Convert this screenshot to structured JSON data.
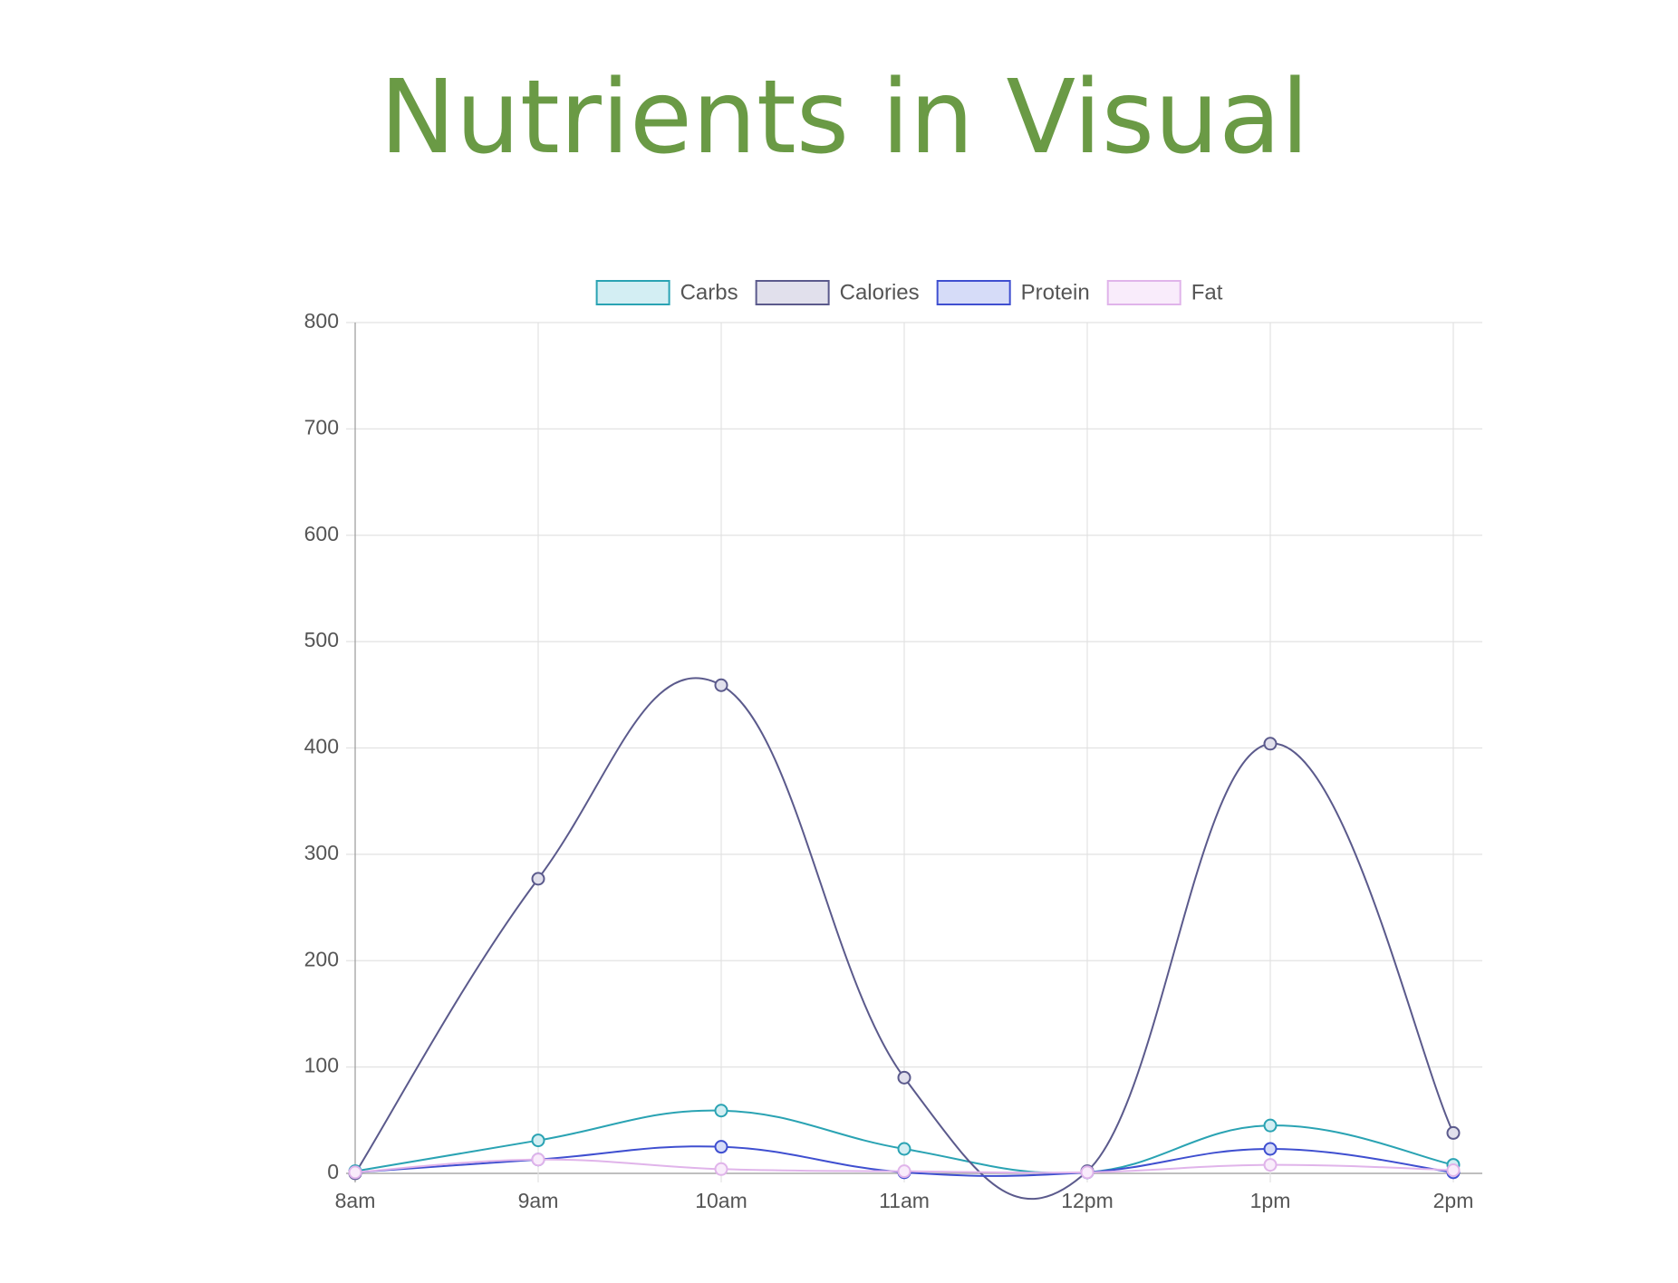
{
  "chart_data": {
    "type": "line",
    "title": "Nutrients in Visual",
    "categories": [
      "8am",
      "9am",
      "10am",
      "11am",
      "12pm",
      "1pm",
      "2pm"
    ],
    "series": [
      {
        "name": "Carbs",
        "color": "#2aa3b3",
        "fill": "#d3eef3",
        "values": [
          2,
          31,
          59,
          23,
          1,
          45,
          8
        ]
      },
      {
        "name": "Calories",
        "color": "#5b5a8c",
        "fill": "#e1e0ec",
        "values": [
          0,
          277,
          459,
          90,
          2,
          404,
          38
        ]
      },
      {
        "name": "Protein",
        "color": "#3f4fd0",
        "fill": "#d6dcf8",
        "values": [
          1,
          13,
          25,
          1,
          1,
          23,
          1
        ]
      },
      {
        "name": "Fat",
        "color": "#e0b4ea",
        "fill": "#f9ecfb",
        "values": [
          1,
          13,
          4,
          2,
          1,
          8,
          3
        ]
      }
    ],
    "ylim": [
      0,
      800
    ],
    "yticks": [
      0,
      100,
      200,
      300,
      400,
      500,
      600,
      700,
      800
    ],
    "grid": true,
    "legend": "top"
  }
}
